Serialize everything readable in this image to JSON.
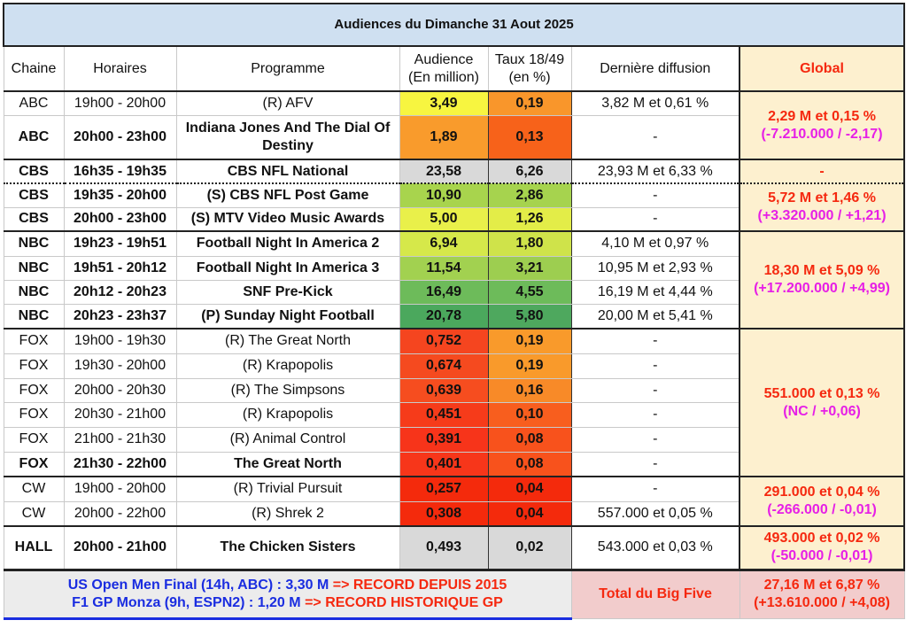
{
  "title": "Audiences du Dimanche 31 Aout 2025",
  "headers": {
    "chaine": "Chaine",
    "horaires": "Horaires",
    "programme": "Programme",
    "audience_1": "Audience",
    "audience_2": "(En million)",
    "taux_1": "Taux 18/49",
    "taux_2": "(en %)",
    "derniere": "Dernière diffusion",
    "global": "Global"
  },
  "rows": [
    {
      "chaine": "ABC",
      "horaires": "19h00 - 20h00",
      "programme": "(R) AFV",
      "audience": "3,49",
      "taux": "0,19",
      "derniere": "3,82 M et 0,61 %",
      "bold": false,
      "aud_color": "#f7f540",
      "taux_color": "#f9962b",
      "h": 27,
      "sep": "thick",
      "global": {
        "span": 2,
        "line1": "2,29 M et 0,15 %",
        "line2": "(-7.210.000 / -2,17)"
      }
    },
    {
      "chaine": "ABC",
      "horaires": "20h00 - 23h00",
      "programme": "Indiana Jones And The Dial Of Destiny",
      "audience": "1,89",
      "taux": "0,13",
      "derniere": "-",
      "bold": true,
      "aud_color": "#f99b2c",
      "taux_color": "#f7621a",
      "h": 50
    },
    {
      "chaine": "CBS",
      "horaires": "16h35 - 19h35",
      "programme": "CBS NFL National",
      "audience": "23,58",
      "taux": "6,26",
      "derniere": "23,93 M et 6,33 %",
      "bold": true,
      "aud_color": "#d9d9d9",
      "taux_color": "#d9d9d9",
      "h": 27,
      "sep": "thick",
      "global": {
        "span": 1,
        "line1": "-",
        "line2": ""
      }
    },
    {
      "chaine": "CBS",
      "horaires": "19h35 - 20h00",
      "programme": "(S) CBS NFL Post Game",
      "audience": "10,90",
      "taux": "2,86",
      "derniere": "-",
      "bold": true,
      "aud_color": "#a8d44d",
      "taux_color": "#a6d34e",
      "h": 27,
      "sep": "dot",
      "global": {
        "span": 2,
        "line1": "5,72 M et 1,46 %",
        "line2": "(+3.320.000 / +1,21)"
      }
    },
    {
      "chaine": "CBS",
      "horaires": "20h00 - 23h00",
      "programme": "(S) MTV Video Music Awards",
      "audience": "5,00",
      "taux": "1,26",
      "derniere": "-",
      "bold": true,
      "aud_color": "#e9f04a",
      "taux_color": "#e3ed48",
      "h": 27
    },
    {
      "chaine": "NBC",
      "horaires": "19h23 - 19h51",
      "programme": "Football Night In America 2",
      "audience": "6,94",
      "taux": "1,80",
      "derniere": "4,10 M et 0,97 %",
      "bold": true,
      "aud_color": "#d6e84a",
      "taux_color": "#cfe34a",
      "h": 28,
      "sep": "thick",
      "global": {
        "span": 4,
        "line1": "18,30 M et 5,09 %",
        "line2": "(+17.200.000 / +4,99)"
      }
    },
    {
      "chaine": "NBC",
      "horaires": "19h51 - 20h12",
      "programme": "Football Night In America 3",
      "audience": "11,54",
      "taux": "3,21",
      "derniere": "10,95 M et 2,93 %",
      "bold": true,
      "aud_color": "#a2d150",
      "taux_color": "#9dce50",
      "h": 27
    },
    {
      "chaine": "NBC",
      "horaires": "20h12 - 20h23",
      "programme": "SNF Pre-Kick",
      "audience": "16,49",
      "taux": "4,55",
      "derniere": "16,19 M et 4,44 %",
      "bold": true,
      "aud_color": "#6dbb5a",
      "taux_color": "#6dbb5a",
      "h": 27
    },
    {
      "chaine": "NBC",
      "horaires": "20h23 - 23h37",
      "programme": "(P) Sunday Night Football",
      "audience": "20,78",
      "taux": "5,80",
      "derniere": "20,00 M et 5,41 %",
      "bold": true,
      "aud_color": "#4ba85d",
      "taux_color": "#4ea85e",
      "h": 28
    },
    {
      "chaine": "FOX",
      "horaires": "19h00 - 19h30",
      "programme": "(R) The Great North",
      "audience": "0,752",
      "taux": "0,19",
      "derniere": "-",
      "bold": false,
      "aud_color": "#f5451f",
      "taux_color": "#f99a2b",
      "h": 28,
      "sep": "thick",
      "global": {
        "span": 6,
        "line1": "551.000 et 0,13 %",
        "line2": "(NC / +0,06)"
      }
    },
    {
      "chaine": "FOX",
      "horaires": "19h30 - 20h00",
      "programme": "(R) Krapopolis",
      "audience": "0,674",
      "taux": "0,19",
      "derniere": "-",
      "bold": false,
      "aud_color": "#f54a1f",
      "taux_color": "#f99a2b",
      "h": 28
    },
    {
      "chaine": "FOX",
      "horaires": "20h00 - 20h30",
      "programme": "(R) The Simpsons",
      "audience": "0,639",
      "taux": "0,16",
      "derniere": "-",
      "bold": false,
      "aud_color": "#f64d1f",
      "taux_color": "#f88a28",
      "h": 27
    },
    {
      "chaine": "FOX",
      "horaires": "20h30 - 21h00",
      "programme": "(R) Krapopolis",
      "audience": "0,451",
      "taux": "0,10",
      "derniere": "-",
      "bold": false,
      "aud_color": "#f63b1a",
      "taux_color": "#f85e1e",
      "h": 28
    },
    {
      "chaine": "FOX",
      "horaires": "21h00 - 21h30",
      "programme": "(R) Animal Control",
      "audience": "0,391",
      "taux": "0,08",
      "derniere": "-",
      "bold": false,
      "aud_color": "#f7341a",
      "taux_color": "#f8521c",
      "h": 28
    },
    {
      "chaine": "FOX",
      "horaires": "21h30 - 22h00",
      "programme": "The Great North",
      "audience": "0,401",
      "taux": "0,08",
      "derniere": "-",
      "bold": true,
      "aud_color": "#f7361a",
      "taux_color": "#f8521c",
      "h": 28
    },
    {
      "chaine": "CW",
      "horaires": "19h00 - 20h00",
      "programme": "(R) Trivial Pursuit",
      "audience": "0,257",
      "taux": "0,04",
      "derniere": "-",
      "bold": false,
      "aud_color": "#f42a0c",
      "taux_color": "#f42a0c",
      "h": 28,
      "sep": "thick",
      "global": {
        "span": 2,
        "line1": "291.000 et 0,04 %",
        "line2": "(-266.000 / -0,01)"
      }
    },
    {
      "chaine": "CW",
      "horaires": "20h00 - 22h00",
      "programme": "(R) Shrek 2",
      "audience": "0,308",
      "taux": "0,04",
      "derniere": "557.000 et 0,05 %",
      "bold": false,
      "aud_color": "#f42a0c",
      "taux_color": "#f42a0c",
      "h": 28
    },
    {
      "chaine": "HALL",
      "horaires": "20h00 - 21h00",
      "programme": "The Chicken Sisters",
      "audience": "0,493",
      "taux": "0,02",
      "derniere": "543.000 et 0,03 %",
      "bold": true,
      "aud_color": "#d9d9d9",
      "taux_color": "#d9d9d9",
      "h": 49,
      "sep": "thick",
      "global": {
        "span": 1,
        "line1": "493.000 et 0,02 %",
        "line2": "(-50.000 / -0,01)"
      }
    }
  ],
  "footer": {
    "line1_blue": "US Open Men Final (14h, ABC) : 3,30 M",
    "line1_red": "=> RECORD DEPUIS 2015",
    "line2_blue": "F1 GP Monza (9h, ESPN2) : 1,20 M",
    "line2_red": "=> RECORD HISTORIQUE GP",
    "total_label": "Total du Big Five",
    "total_line1": "27,16 M et 6,87 %",
    "total_line2": "(+13.610.000 / +4,08)"
  }
}
